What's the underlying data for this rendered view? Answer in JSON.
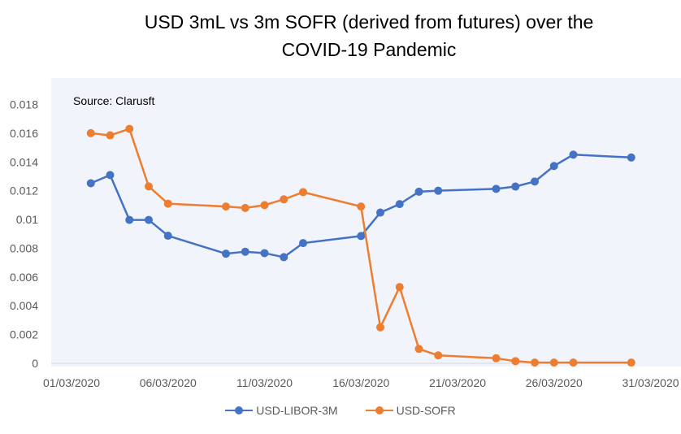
{
  "chart_data": {
    "type": "line",
    "title_lines": [
      "USD 3mL vs 3m SOFR (derived from futures) over the",
      "COVID-19 Pandemic"
    ],
    "annotation": "Source: Clarusft",
    "xlabel": "",
    "ylabel": "",
    "x_tick_labels": [
      "01/03/2020",
      "06/03/2020",
      "11/03/2020",
      "16/03/2020",
      "21/03/2020",
      "26/03/2020",
      "31/03/2020"
    ],
    "x_ticks": [
      0,
      5,
      10,
      15,
      20,
      25,
      30
    ],
    "xlim": [
      0,
      30
    ],
    "y_tick_labels": [
      "0",
      "0.002",
      "0.004",
      "0.006",
      "0.008",
      "0.01",
      "0.012",
      "0.014",
      "0.016",
      "0.018"
    ],
    "y_ticks": [
      0,
      0.002,
      0.004,
      0.006,
      0.008,
      0.01,
      0.012,
      0.014,
      0.016,
      0.018
    ],
    "ylim": [
      0,
      0.018
    ],
    "grid": false,
    "legend_position": "bottom",
    "series": [
      {
        "name": "USD-LIBOR-3M",
        "color": "#4472C4",
        "points": [
          [
            "02/03/2020",
            0.01252
          ],
          [
            "03/03/2020",
            0.01309
          ],
          [
            "04/03/2020",
            0.00997
          ],
          [
            "05/03/2020",
            0.00997
          ],
          [
            "06/03/2020",
            0.00887
          ],
          [
            "09/03/2020",
            0.00762
          ],
          [
            "10/03/2020",
            0.00776
          ],
          [
            "11/03/2020",
            0.00766
          ],
          [
            "12/03/2020",
            0.00738
          ],
          [
            "13/03/2020",
            0.00836
          ],
          [
            "16/03/2020",
            0.00885
          ],
          [
            "17/03/2020",
            0.01048
          ],
          [
            "18/03/2020",
            0.01107
          ],
          [
            "19/03/2020",
            0.01193
          ],
          [
            "20/03/2020",
            0.012
          ],
          [
            "23/03/2020",
            0.01213
          ],
          [
            "24/03/2020",
            0.01229
          ],
          [
            "25/03/2020",
            0.01264
          ],
          [
            "26/03/2020",
            0.01372
          ],
          [
            "27/03/2020",
            0.01451
          ],
          [
            "30/03/2020",
            0.01431
          ]
        ]
      },
      {
        "name": "USD-SOFR",
        "color": "#ED7D31",
        "points": [
          [
            "02/03/2020",
            0.016
          ],
          [
            "03/03/2020",
            0.01585
          ],
          [
            "04/03/2020",
            0.0163
          ],
          [
            "05/03/2020",
            0.0123
          ],
          [
            "06/03/2020",
            0.0111
          ],
          [
            "09/03/2020",
            0.0109
          ],
          [
            "10/03/2020",
            0.0108
          ],
          [
            "11/03/2020",
            0.011
          ],
          [
            "12/03/2020",
            0.0114
          ],
          [
            "13/03/2020",
            0.0119
          ],
          [
            "16/03/2020",
            0.0109
          ],
          [
            "17/03/2020",
            0.0025
          ],
          [
            "18/03/2020",
            0.0053
          ],
          [
            "19/03/2020",
            0.001
          ],
          [
            "20/03/2020",
            0.00055
          ],
          [
            "23/03/2020",
            0.00035
          ],
          [
            "24/03/2020",
            0.00015
          ],
          [
            "25/03/2020",
            5e-05
          ],
          [
            "26/03/2020",
            5e-05
          ],
          [
            "27/03/2020",
            5e-05
          ],
          [
            "30/03/2020",
            5e-05
          ]
        ]
      }
    ]
  }
}
